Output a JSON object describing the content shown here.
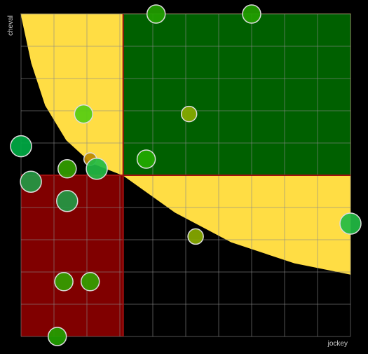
{
  "chart_data": {
    "type": "bubble",
    "x_label": "jockey",
    "y_label": "cheval",
    "xlim": [
      0,
      10
    ],
    "ylim": [
      0,
      10
    ],
    "xticks": [
      0,
      1,
      2,
      3,
      4,
      5,
      6,
      7,
      8,
      9,
      10
    ],
    "yticks": [
      0,
      1,
      2,
      3,
      4,
      5,
      6,
      7,
      8,
      9,
      10
    ],
    "grid": true,
    "thresholds": {
      "x": 3.1,
      "y": 5
    },
    "region_colors": {
      "low": "#800000",
      "high": "#006000",
      "curve": "#ffdd44",
      "threshold": "#a01010"
    },
    "curve": {
      "x": [
        0,
        0.32,
        0.74,
        1.38,
        2.13,
        3.1,
        4.68,
        6.38,
        8.3,
        10
      ],
      "y": [
        10,
        8.48,
        7.17,
        6.09,
        5.39,
        5.0,
        3.85,
        2.93,
        2.28,
        1.93
      ]
    },
    "x": [
      4.1,
      7.0,
      1.9,
      5.1,
      0,
      2.1,
      3.8,
      1.4,
      2.3,
      0.3,
      1.4,
      10,
      5.3,
      1.3,
      2.1,
      1.1
    ],
    "y": [
      10,
      10,
      6.9,
      6.9,
      5.9,
      5.5,
      5.5,
      5.2,
      5.2,
      4.8,
      4.2,
      3.5,
      3.1,
      1.7,
      1.7,
      0
    ],
    "sizes": [
      13,
      13,
      13,
      11,
      15,
      9,
      13,
      13,
      15,
      15,
      15,
      15,
      11,
      13,
      13,
      13
    ],
    "colors": [
      "#22a000",
      "#22a000",
      "#55cc11",
      "#88aa00",
      "#00aa44",
      "#bb8800",
      "#22aa00",
      "#33a000",
      "#22bb44",
      "#229944",
      "#229944",
      "#22bb44",
      "#88aa00",
      "#33a000",
      "#33a000",
      "#22a000"
    ]
  }
}
